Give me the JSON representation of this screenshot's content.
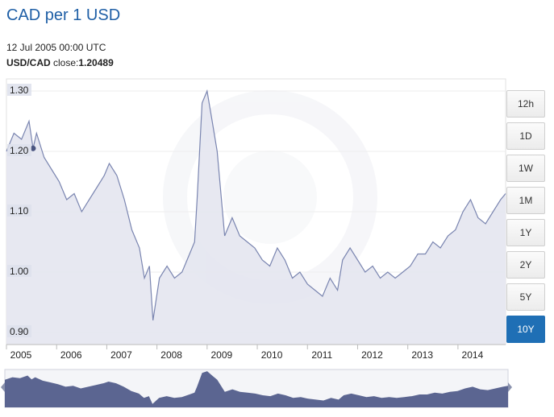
{
  "header": {
    "title": "CAD per 1 USD",
    "timestamp": "12 Jul 2005 00:00 UTC",
    "pair": "USD/CAD",
    "close_label": "close:",
    "close_value": "1.20489"
  },
  "range_buttons": [
    {
      "label": "12h",
      "active": false
    },
    {
      "label": "1D",
      "active": false
    },
    {
      "label": "1W",
      "active": false
    },
    {
      "label": "1M",
      "active": false
    },
    {
      "label": "1Y",
      "active": false
    },
    {
      "label": "2Y",
      "active": false
    },
    {
      "label": "5Y",
      "active": false
    },
    {
      "label": "10Y",
      "active": true
    }
  ],
  "colors": {
    "line": "#7a85b0",
    "fill": "#e4e6ef",
    "navigator_fill": "#5b6591",
    "accent": "#1f6fb5",
    "title": "#1f5fa6"
  },
  "chart_data": {
    "type": "area",
    "y_ticks": [
      "1.30",
      "1.20",
      "1.10",
      "1.00",
      "0.90"
    ],
    "ylim": [
      0.88,
      1.32
    ],
    "x_tick_labels": [
      "2005",
      "2006",
      "2007",
      "2008",
      "2009",
      "2010",
      "2011",
      "2012",
      "2013",
      "2014"
    ],
    "xlim": [
      2005.0,
      2014.95
    ],
    "highlighted_point": {
      "x": 2005.53,
      "y": 1.20489
    },
    "series": [
      {
        "x": [
          2005.0,
          2005.15,
          2005.3,
          2005.45,
          2005.53,
          2005.6,
          2005.75,
          2005.9,
          2006.05,
          2006.2,
          2006.35,
          2006.5,
          2006.65,
          2006.8,
          2006.95,
          2007.05,
          2007.2,
          2007.35,
          2007.5,
          2007.65,
          2007.75,
          2007.85,
          2007.92,
          2008.05,
          2008.2,
          2008.35,
          2008.5,
          2008.65,
          2008.75,
          2008.8,
          2008.9,
          2009.0,
          2009.1,
          2009.2,
          2009.35,
          2009.5,
          2009.65,
          2009.8,
          2009.95,
          2010.1,
          2010.25,
          2010.4,
          2010.55,
          2010.7,
          2010.85,
          2011.0,
          2011.15,
          2011.3,
          2011.45,
          2011.6,
          2011.7,
          2011.85,
          2012.0,
          2012.15,
          2012.3,
          2012.45,
          2012.6,
          2012.75,
          2012.9,
          2013.05,
          2013.2,
          2013.35,
          2013.5,
          2013.65,
          2013.8,
          2013.95,
          2014.1,
          2014.25,
          2014.4,
          2014.55,
          2014.7,
          2014.85,
          2014.95
        ],
        "y": [
          1.2,
          1.23,
          1.22,
          1.25,
          1.205,
          1.23,
          1.19,
          1.17,
          1.15,
          1.12,
          1.13,
          1.1,
          1.12,
          1.14,
          1.16,
          1.18,
          1.16,
          1.12,
          1.07,
          1.04,
          0.99,
          1.01,
          0.92,
          0.99,
          1.01,
          0.99,
          1.0,
          1.03,
          1.05,
          1.12,
          1.28,
          1.3,
          1.25,
          1.2,
          1.06,
          1.09,
          1.06,
          1.05,
          1.04,
          1.02,
          1.01,
          1.04,
          1.02,
          0.99,
          1.0,
          0.98,
          0.97,
          0.96,
          0.99,
          0.97,
          1.02,
          1.04,
          1.02,
          1.0,
          1.01,
          0.99,
          1.0,
          0.99,
          1.0,
          1.01,
          1.03,
          1.03,
          1.05,
          1.04,
          1.06,
          1.07,
          1.1,
          1.12,
          1.09,
          1.08,
          1.1,
          1.12,
          1.13
        ]
      }
    ]
  }
}
